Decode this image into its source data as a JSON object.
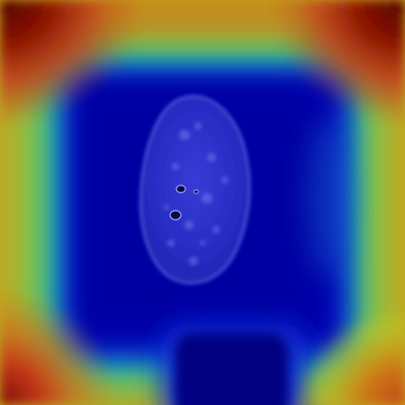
{
  "image": {
    "kind": "heatmap-overlay-on-grayscale-scan",
    "subject": "oval-tissue-specimen",
    "colormap": "jet",
    "colors": {
      "low": "#00008b",
      "mid_low": "#0033cc",
      "mid": "#18a9a1",
      "mid_high": "#c2c81f",
      "high": "#d0461a",
      "peak": "#5b0000"
    }
  }
}
